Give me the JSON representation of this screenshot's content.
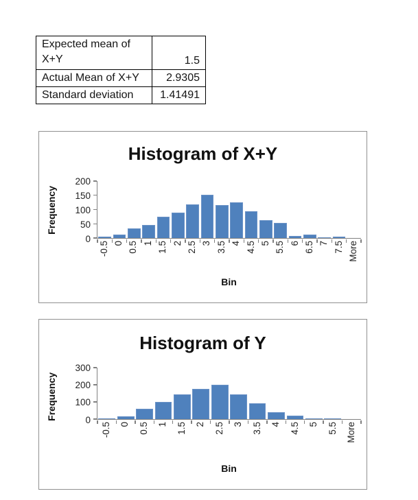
{
  "stats_table": {
    "rows": [
      {
        "label": "Expected mean of\nX+Y",
        "value": "1.5"
      },
      {
        "label": "Actual Mean of X+Y",
        "value": "2.9305"
      },
      {
        "label": "Standard deviation",
        "value": "1.41491"
      }
    ]
  },
  "colors": {
    "bar_fill": "#4f81bd",
    "bar_edge": "#6b92c6",
    "axis_line": "#808080",
    "chart_border": "#909090"
  },
  "chart_data": [
    {
      "type": "bar",
      "title": "Histogram of X+Y",
      "xlabel": "Bin",
      "ylabel": "Frequency",
      "categories": [
        "-0.5",
        "0",
        "0.5",
        "1",
        "1.5",
        "2",
        "2.5",
        "3",
        "3.5",
        "4",
        "4.5",
        "5",
        "5.5",
        "6",
        "6.5",
        "7",
        "7.5",
        "More"
      ],
      "values": [
        5,
        12,
        33,
        47,
        75,
        89,
        117,
        153,
        115,
        126,
        94,
        63,
        54,
        8,
        12,
        3,
        4,
        0
      ],
      "ylim": [
        0,
        200
      ],
      "yticks": [
        0,
        50,
        100,
        150,
        200
      ],
      "grid": false,
      "legend": false
    },
    {
      "type": "bar",
      "title": "Histogram of Y",
      "xlabel": "Bin",
      "ylabel": "Frequency",
      "categories": [
        "-0.5",
        "0",
        "0.5",
        "1",
        "1.5",
        "2",
        "2.5",
        "3",
        "3.5",
        "4",
        "4.5",
        "5",
        "5.5",
        "More"
      ],
      "values": [
        4,
        15,
        60,
        101,
        143,
        178,
        202,
        143,
        91,
        39,
        19,
        5,
        4,
        0
      ],
      "ylim": [
        0,
        300
      ],
      "yticks": [
        0,
        100,
        200,
        300
      ],
      "grid": false,
      "legend": false
    }
  ]
}
